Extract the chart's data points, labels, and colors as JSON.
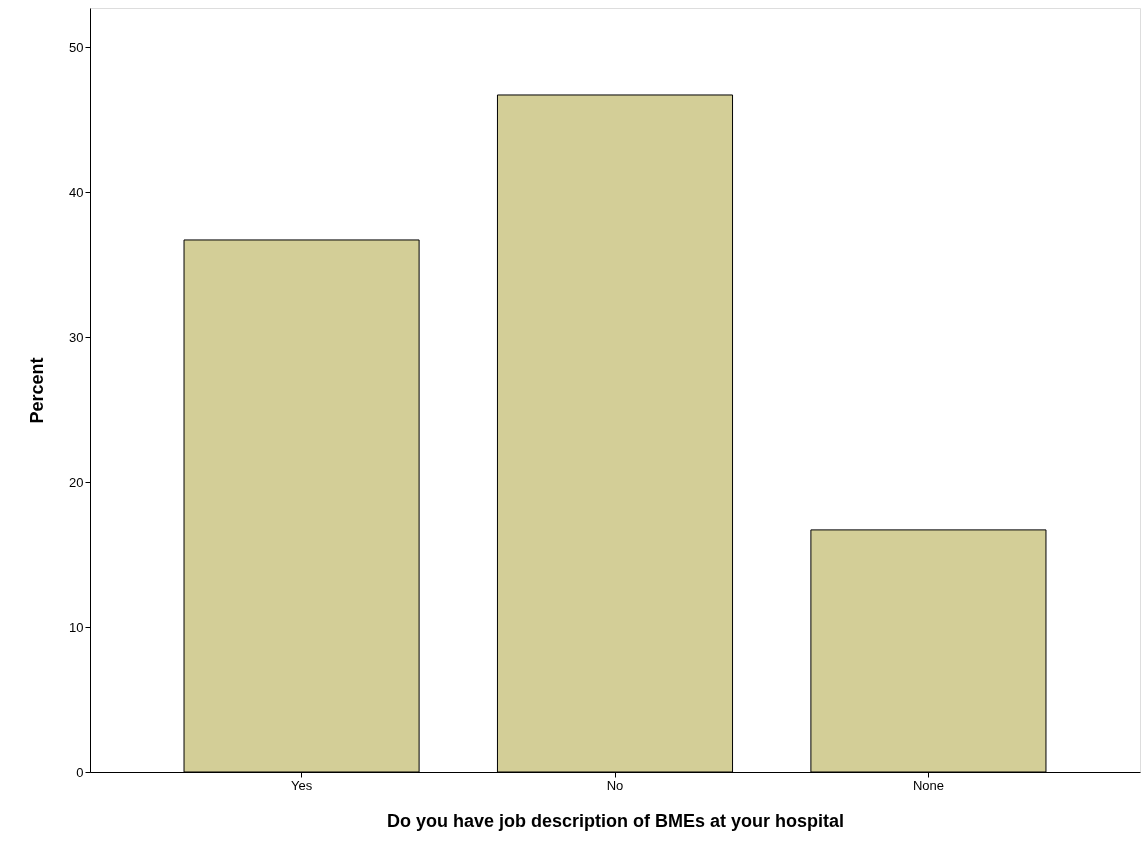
{
  "chart_data": {
    "type": "bar",
    "xlabel": "Do you have job description of BMEs at your hospital",
    "ylabel": "Percent",
    "categories": [
      "Yes",
      "No",
      "None"
    ],
    "values": [
      36.7,
      46.7,
      16.7
    ],
    "color": "#d3ce97",
    "ylim": [
      0,
      52.7
    ],
    "yticks": [
      0,
      10,
      20,
      30,
      40,
      50
    ],
    "grid": false
  }
}
